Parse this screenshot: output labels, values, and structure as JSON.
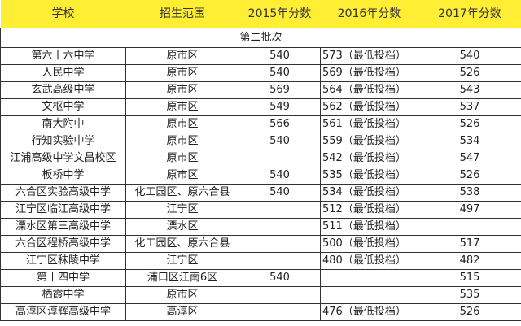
{
  "headers": [
    "学校",
    "招生范围",
    "2015年分数",
    "2016年分数",
    "2017年分数"
  ],
  "section": "第二批次",
  "rows": [
    [
      "第六十六中学",
      "原市区",
      "540",
      "573（最低投档）",
      "540"
    ],
    [
      "人民中学",
      "原市区",
      "540",
      "569（最低投档）",
      "526"
    ],
    [
      "玄武高级中学",
      "原市区",
      "569",
      "564（最低投档）",
      "543"
    ],
    [
      "文枢中学",
      "原市区",
      "549",
      "562（最低投档）",
      "537"
    ],
    [
      "南大附中",
      "原市区",
      "566",
      "561（最低投档）",
      "526"
    ],
    [
      "行知实验中学",
      "原市区",
      "540",
      "559（最低投档）",
      "534"
    ],
    [
      "江浦高级中学文昌校区",
      "原市区",
      "",
      "542（最低投档）",
      "547"
    ],
    [
      "板桥中学",
      "原市区",
      "540",
      "535（最低投档）",
      "526"
    ],
    [
      "六合区实验高级中学",
      "化工园区、原六合县",
      "540",
      "534（最低投档）",
      "538"
    ],
    [
      "江宁区临江高级中学",
      "江宁区",
      "",
      "512（最低投档）",
      "497"
    ],
    [
      "溧水区第三高级中学",
      "溧水区",
      "",
      "511（最低投档）",
      ""
    ],
    [
      "六合区程桥高级中学",
      "化工园区、原六合县",
      "",
      "500（最低投档）",
      "517"
    ],
    [
      "江宁区秣陵中学",
      "江宁区",
      "",
      "480（最低投档）",
      "482"
    ],
    [
      "第十四中学",
      "浦口区江南6区",
      "540",
      "",
      "515"
    ],
    [
      "栖霞中学",
      "原市区",
      "",
      "",
      "535"
    ],
    [
      "高淳区淳辉高级中学",
      "高淳区",
      "",
      "476（最低投档）",
      "526"
    ]
  ],
  "colors": {
    "header_bg": "#ffee33"
  }
}
